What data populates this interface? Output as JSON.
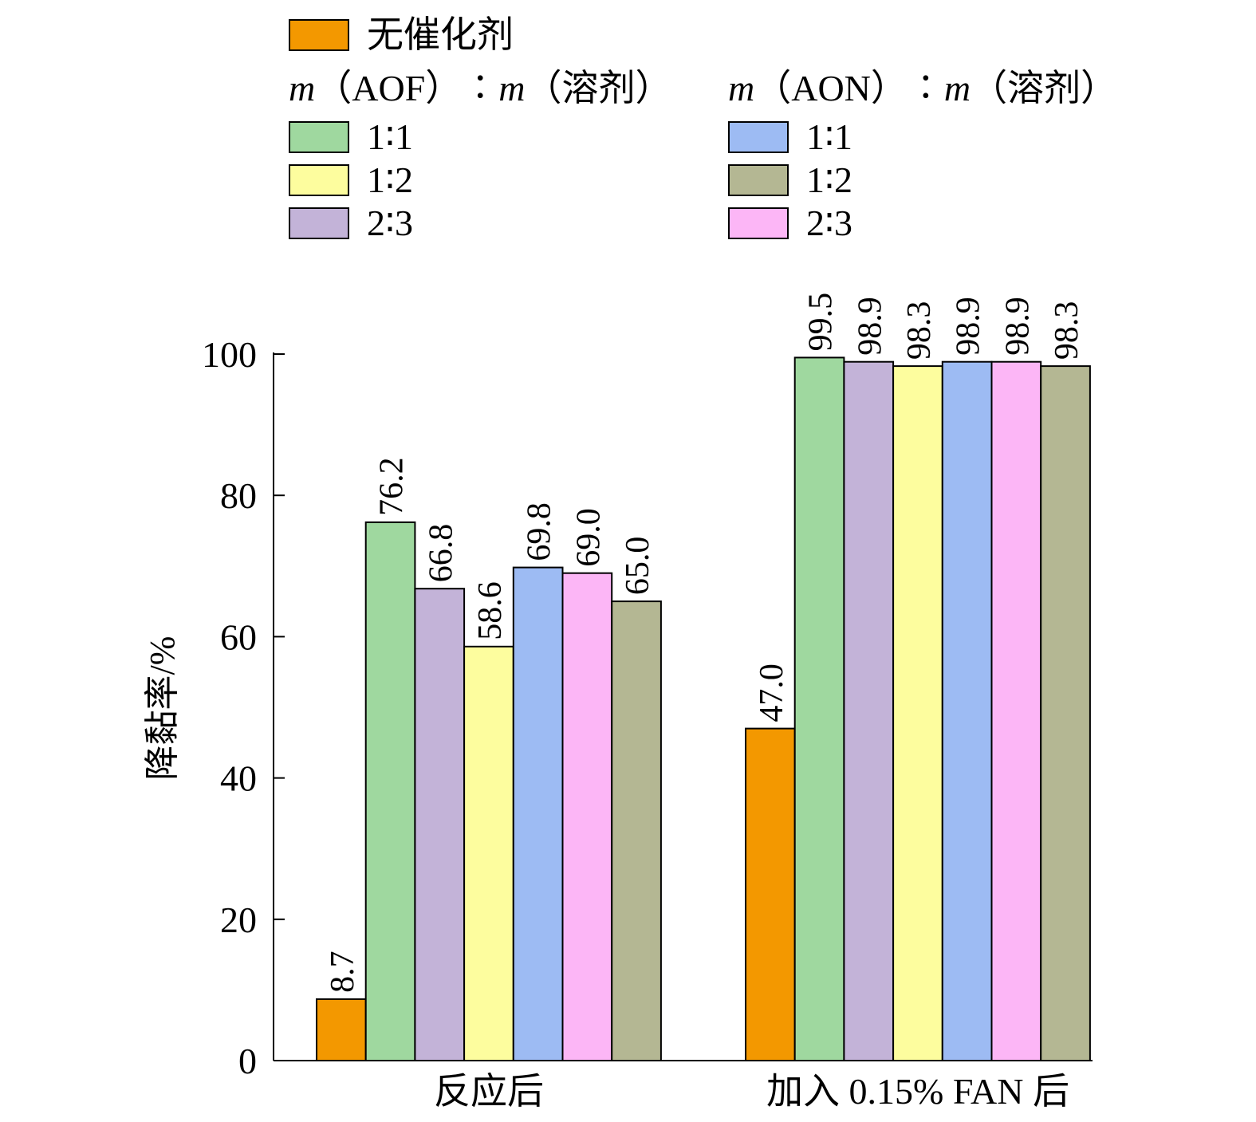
{
  "chart_data": {
    "type": "bar",
    "categories": [
      "反应后",
      "加入 0.15% FAN 后"
    ],
    "ylabel": "降黏率/%",
    "xlabel": "",
    "ylim": [
      0,
      100
    ],
    "yticks": [
      0,
      20,
      40,
      60,
      80,
      100
    ],
    "grid": false,
    "legend_position": "top",
    "series": [
      {
        "name": "无催化剂",
        "color": "#f39800",
        "values": [
          8.7,
          47.0
        ],
        "labels": [
          "8.7",
          "47.0"
        ]
      },
      {
        "name": "AOF 1∶1",
        "color": "#9fd89f",
        "values": [
          76.2,
          99.5
        ],
        "labels": [
          "76.2",
          "99.5"
        ]
      },
      {
        "name": "AOF 2∶3",
        "color": "#c3b3d8",
        "values": [
          66.8,
          98.9
        ],
        "labels": [
          "66.8",
          "98.9"
        ]
      },
      {
        "name": "AOF 1∶2",
        "color": "#fdfd9e",
        "values": [
          58.6,
          98.3
        ],
        "labels": [
          "58.6",
          "98.3"
        ]
      },
      {
        "name": "AON 1∶1",
        "color": "#9dbbf3",
        "values": [
          69.8,
          98.9
        ],
        "labels": [
          "69.8",
          "98.9"
        ]
      },
      {
        "name": "AON 2∶3",
        "color": "#fcb6f6",
        "values": [
          69.0,
          98.9
        ],
        "labels": [
          "69.0",
          "98.9"
        ]
      },
      {
        "name": "AON 1∶2",
        "color": "#b4b793",
        "values": [
          65.0,
          98.3
        ],
        "labels": [
          "65.0",
          "98.3"
        ]
      }
    ]
  },
  "legend": {
    "no_catalyst": {
      "label": "无催化剂",
      "color": "#f39800"
    },
    "aof": {
      "m1": "m",
      "rest1": "（AOF）∶",
      "m2": "m",
      "rest2": "（溶剂）",
      "items": [
        {
          "label": "1∶1",
          "color": "#9fd89f"
        },
        {
          "label": "1∶2",
          "color": "#fdfd9e"
        },
        {
          "label": "2∶3",
          "color": "#c3b3d8"
        }
      ]
    },
    "aon": {
      "m1": "m",
      "rest1": "（AON）∶",
      "m2": "m",
      "rest2": "（溶剂）",
      "items": [
        {
          "label": "1∶1",
          "color": "#9dbbf3"
        },
        {
          "label": "1∶2",
          "color": "#b4b793"
        },
        {
          "label": "2∶3",
          "color": "#fcb6f6"
        }
      ]
    }
  }
}
